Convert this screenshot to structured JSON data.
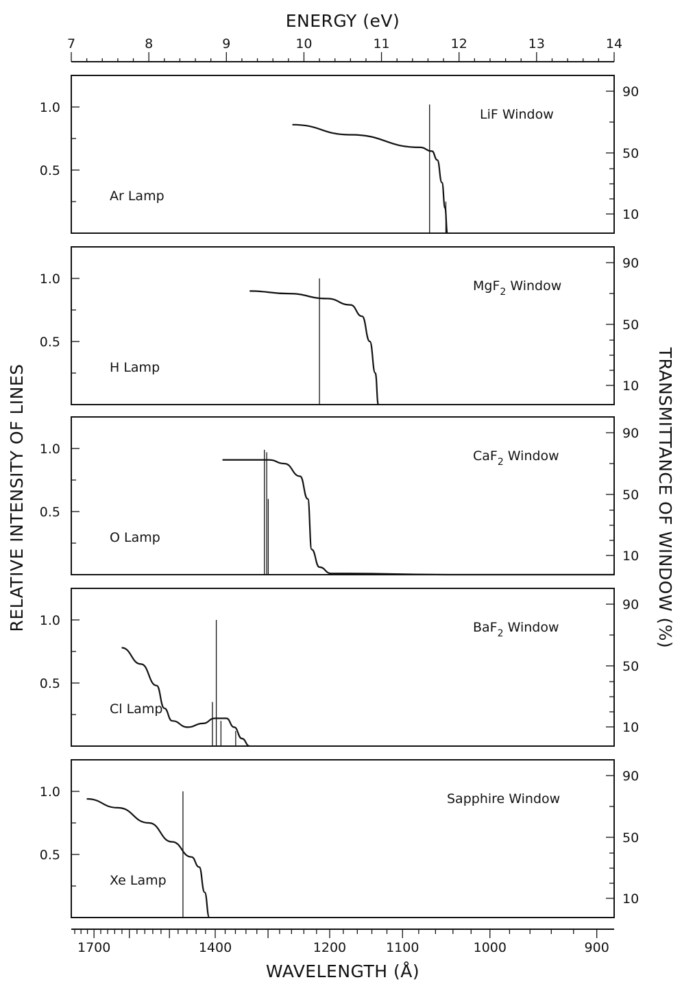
{
  "figure": {
    "top_axis_label": "ENERGY (eV)",
    "bottom_axis_label": "WAVELENGTH (Å)",
    "left_axis_label": "RELATIVE INTENSITY OF LINES",
    "right_axis_label": "TRANSMITTANCE OF WINDOW (%)"
  },
  "chart_data": [
    {
      "type": "line",
      "panel": 1,
      "lamp": "Ar Lamp",
      "window": "LiF Window",
      "window_sub": "",
      "energy_axis_eV": [
        7,
        14
      ],
      "intensity_ticks": [
        "1.0",
        "0.5"
      ],
      "transmittance_ticks": [
        "90",
        "50",
        "10"
      ],
      "transmittance_curve": [
        [
          9.85,
          0.86
        ],
        [
          10.6,
          0.78
        ],
        [
          11.5,
          0.68
        ],
        [
          11.65,
          0.65
        ],
        [
          11.72,
          0.58
        ],
        [
          11.78,
          0.4
        ],
        [
          11.82,
          0.2
        ],
        [
          11.85,
          0.0
        ]
      ],
      "lines": [
        {
          "energy": 11.62,
          "intensity": 1.02
        },
        {
          "energy": 11.83,
          "intensity": 0.25
        }
      ]
    },
    {
      "type": "line",
      "panel": 2,
      "lamp": "H Lamp",
      "window": "MgF",
      "window_sub": "2",
      "window_suffix": " Window",
      "energy_axis_eV": [
        7,
        14
      ],
      "intensity_ticks": [
        "1.0",
        "0.5"
      ],
      "transmittance_ticks": [
        "90",
        "50",
        "10"
      ],
      "transmittance_curve": [
        [
          9.3,
          0.9
        ],
        [
          9.8,
          0.88
        ],
        [
          10.3,
          0.84
        ],
        [
          10.6,
          0.79
        ],
        [
          10.75,
          0.7
        ],
        [
          10.85,
          0.5
        ],
        [
          10.92,
          0.25
        ],
        [
          10.96,
          0.0
        ]
      ],
      "lines": [
        {
          "energy": 10.2,
          "intensity": 1.0
        }
      ]
    },
    {
      "type": "line",
      "panel": 3,
      "lamp": "O Lamp",
      "window": "CaF",
      "window_sub": "2",
      "window_suffix": " Window",
      "energy_axis_eV": [
        7,
        14
      ],
      "intensity_ticks": [
        "1.0",
        "0.5"
      ],
      "transmittance_ticks": [
        "90",
        "50",
        "10"
      ],
      "transmittance_curve": [
        [
          8.95,
          0.91
        ],
        [
          9.55,
          0.91
        ],
        [
          9.75,
          0.88
        ],
        [
          9.95,
          0.78
        ],
        [
          10.05,
          0.6
        ],
        [
          10.1,
          0.2
        ],
        [
          10.2,
          0.06
        ],
        [
          10.35,
          0.01
        ],
        [
          12.0,
          0.0
        ],
        [
          14.0,
          0.0
        ]
      ],
      "lines": [
        {
          "energy": 9.49,
          "intensity": 0.99
        },
        {
          "energy": 9.52,
          "intensity": 0.97
        },
        {
          "energy": 9.54,
          "intensity": 0.6
        }
      ]
    },
    {
      "type": "line",
      "panel": 4,
      "lamp": "Cl Lamp",
      "window": "BaF",
      "window_sub": "2",
      "window_suffix": " Window",
      "energy_axis_eV": [
        7,
        14
      ],
      "intensity_ticks": [
        "1.0",
        "0.5"
      ],
      "transmittance_ticks": [
        "90",
        "50",
        "10"
      ],
      "transmittance_curve": [
        [
          7.65,
          0.78
        ],
        [
          7.9,
          0.65
        ],
        [
          8.1,
          0.48
        ],
        [
          8.2,
          0.3
        ],
        [
          8.3,
          0.2
        ],
        [
          8.5,
          0.15
        ],
        [
          8.7,
          0.18
        ],
        [
          8.85,
          0.22
        ],
        [
          9.0,
          0.22
        ],
        [
          9.1,
          0.15
        ],
        [
          9.2,
          0.06
        ],
        [
          9.3,
          0.0
        ]
      ],
      "lines": [
        {
          "energy": 8.87,
          "intensity": 1.0
        },
        {
          "energy": 8.82,
          "intensity": 0.35
        },
        {
          "energy": 8.93,
          "intensity": 0.2
        },
        {
          "energy": 9.12,
          "intensity": 0.12
        }
      ]
    },
    {
      "type": "line",
      "panel": 5,
      "lamp": "Xe Lamp",
      "window": "Sapphire Window",
      "window_sub": "",
      "energy_axis_eV": [
        7,
        14
      ],
      "intensity_ticks": [
        "1.0",
        "0.5"
      ],
      "transmittance_ticks": [
        "90",
        "50",
        "10"
      ],
      "transmittance_curve": [
        [
          7.2,
          0.94
        ],
        [
          7.6,
          0.87
        ],
        [
          8.0,
          0.75
        ],
        [
          8.3,
          0.6
        ],
        [
          8.55,
          0.48
        ],
        [
          8.65,
          0.4
        ],
        [
          8.72,
          0.2
        ],
        [
          8.78,
          0.0
        ]
      ],
      "lines": [
        {
          "energy": 8.44,
          "intensity": 1.0
        }
      ]
    }
  ],
  "energy_ticks": [
    "7",
    "8",
    "9",
    "10",
    "11",
    "12",
    "13",
    "14"
  ],
  "wavelength_ticks": [
    "1700",
    "1400",
    "1200",
    "1100",
    "1000",
    "900"
  ],
  "wavelength_tick_values": [
    1700,
    1400,
    1200,
    1100,
    1000,
    900
  ]
}
